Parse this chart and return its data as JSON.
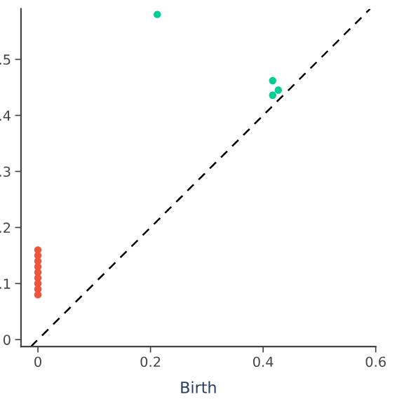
{
  "chart_data": {
    "type": "scatter",
    "xlabel": "Birth",
    "xlim": [
      -0.03,
      0.6
    ],
    "ylim": [
      -0.0125,
      0.59
    ],
    "xticks": [
      {
        "value": 0,
        "label": "0"
      },
      0.2,
      0.4,
      0.6
    ],
    "yticks": [
      {
        "value": 0,
        "label": "0"
      },
      {
        "value": 0.1,
        "label": ".1"
      },
      {
        "value": 0.2,
        "label": ".2"
      },
      {
        "value": 0.3,
        "label": ".3"
      },
      {
        "value": 0.4,
        "label": ".4"
      },
      {
        "value": 0.5,
        "label": ".5"
      }
    ],
    "grid": false,
    "legend": false,
    "series": [
      {
        "type": "line",
        "line_style": "dashed",
        "marker": "none",
        "color": "#000000",
        "x": [
          -0.0125,
          0.59
        ],
        "values": [
          -0.0125,
          0.59
        ]
      },
      {
        "marker": "circle",
        "color": "#ef553b",
        "x": [
          0,
          0,
          0,
          0,
          0,
          0,
          0,
          0,
          0
        ],
        "values": [
          0.08,
          0.09,
          0.1,
          0.11,
          0.12,
          0.13,
          0.14,
          0.15,
          0.16
        ]
      },
      {
        "marker": "circle",
        "color": "#00cc96",
        "x": [
          0.212,
          0.417,
          0.427,
          0.417
        ],
        "values": [
          0.58,
          0.462,
          0.445,
          0.436
        ]
      }
    ]
  }
}
